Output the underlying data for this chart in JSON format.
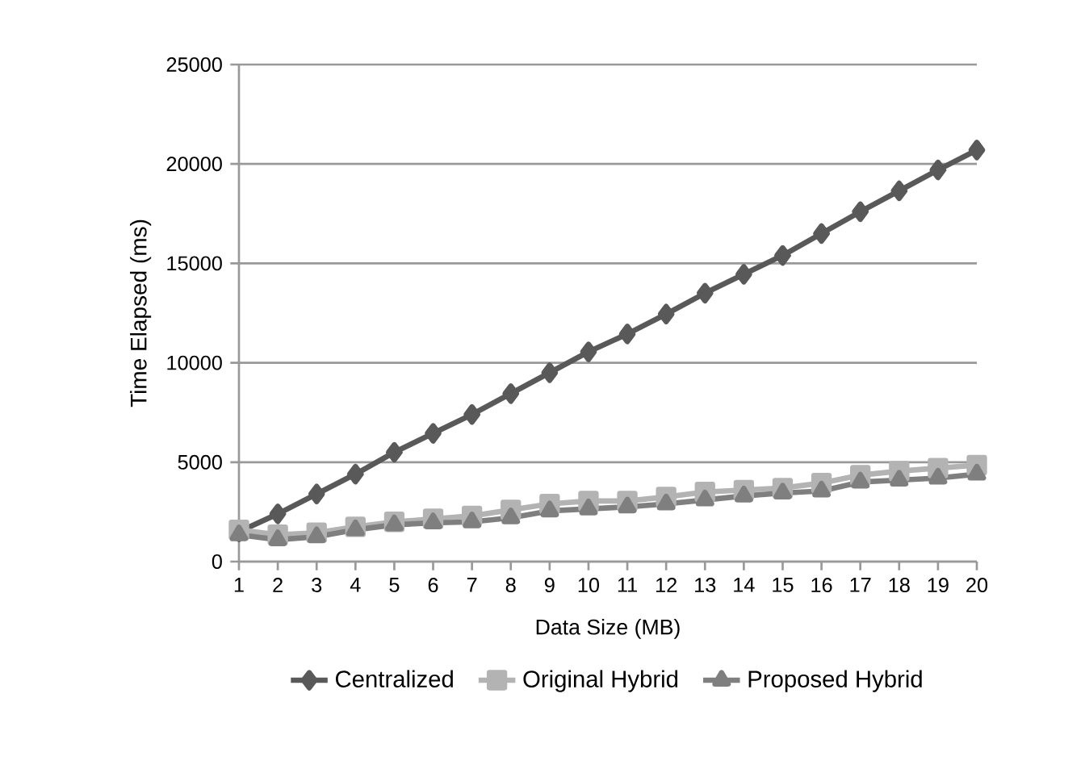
{
  "chart_data": {
    "type": "line",
    "xlabel": "Data Size (MB)",
    "ylabel": "Time Elapsed (ms)",
    "categories": [
      "1",
      "2",
      "3",
      "4",
      "5",
      "6",
      "7",
      "8",
      "9",
      "10",
      "11",
      "12",
      "13",
      "14",
      "15",
      "16",
      "17",
      "18",
      "19",
      "20"
    ],
    "ylim": [
      0,
      25000
    ],
    "yticks": [
      0,
      5000,
      10000,
      15000,
      20000,
      25000
    ],
    "grid": "y",
    "legend": "bottom",
    "series": [
      {
        "name": "Centralized",
        "color": "#595959",
        "marker": "diamond",
        "values": [
          1500,
          2400,
          3400,
          4400,
          5500,
          6450,
          7400,
          8450,
          9500,
          10550,
          11450,
          12450,
          13500,
          14450,
          15400,
          16500,
          17600,
          18650,
          19700,
          20700
        ]
      },
      {
        "name": "Original Hybrid",
        "color": "#b3b3b3",
        "marker": "square",
        "values": [
          1600,
          1350,
          1450,
          1750,
          2000,
          2150,
          2300,
          2600,
          2900,
          3050,
          3050,
          3250,
          3500,
          3600,
          3700,
          3950,
          4350,
          4550,
          4700,
          4850
        ]
      },
      {
        "name": "Proposed Hybrid",
        "color": "#7f7f7f",
        "marker": "triangle",
        "values": [
          1350,
          1100,
          1250,
          1600,
          1850,
          1950,
          2000,
          2200,
          2550,
          2650,
          2750,
          2900,
          3100,
          3300,
          3450,
          3550,
          4000,
          4100,
          4200,
          4400
        ]
      }
    ]
  }
}
